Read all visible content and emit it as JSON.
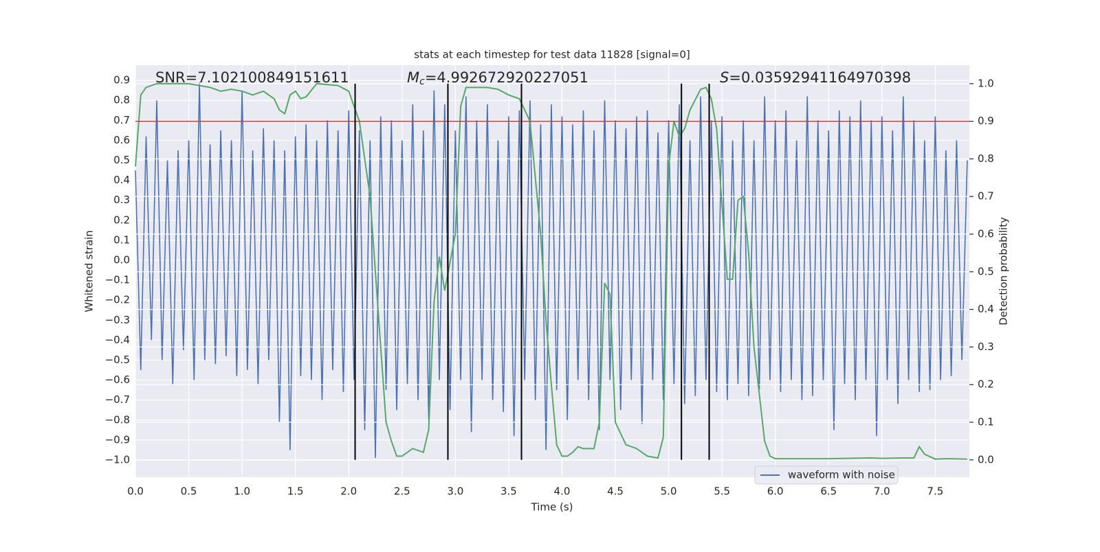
{
  "chart_data": {
    "type": "line",
    "title": "stats at each timestep for test data 11828 [signal=0]",
    "xlabel": "Time (s)",
    "ylabel": "Whitened strain",
    "y2label": "Detection probability",
    "annotations": [
      {
        "text": "SNR=7.102100849151611"
      },
      {
        "symbol": "M",
        "subscript": "c",
        "text": "=4.992672920227051"
      },
      {
        "symbol": "S",
        "text": "=0.03592941164970398"
      }
    ],
    "xlim": [
      0,
      7.82
    ],
    "ylim": [
      -1.086,
      0.976
    ],
    "y2lim": [
      -0.046,
      1.049
    ],
    "xticks": [
      {
        "value": 0,
        "label": "0.0"
      },
      0.5,
      {
        "value": 1,
        "label": "1.0"
      },
      1.5,
      {
        "value": 2,
        "label": "2.0"
      },
      2.5,
      {
        "value": 3,
        "label": "3.0"
      },
      3.5,
      {
        "value": 4,
        "label": "4.0"
      },
      4.5,
      {
        "value": 5,
        "label": "5.0"
      },
      5.5,
      {
        "value": 6,
        "label": "6.0"
      },
      6.5,
      {
        "value": 7,
        "label": "7.0"
      },
      7.5
    ],
    "yticks": [
      {
        "value": -1,
        "label": "−1.0"
      },
      {
        "value": -0.9,
        "label": "−0.9"
      },
      {
        "value": -0.8,
        "label": "−0.8"
      },
      {
        "value": -0.7,
        "label": "−0.7"
      },
      {
        "value": -0.6,
        "label": "−0.6"
      },
      {
        "value": -0.5,
        "label": "−0.5"
      },
      {
        "value": -0.4,
        "label": "−0.4"
      },
      {
        "value": -0.3,
        "label": "−0.3"
      },
      {
        "value": -0.2,
        "label": "−0.2"
      },
      {
        "value": -0.1,
        "label": "−0.1"
      },
      {
        "value": 0,
        "label": "0.0"
      },
      0.1,
      0.2,
      0.3,
      0.4,
      0.5,
      0.6,
      0.7,
      0.8,
      0.9
    ],
    "y2ticks": [
      {
        "value": 0,
        "label": "0.0"
      },
      0.1,
      0.2,
      0.3,
      0.4,
      0.5,
      0.6,
      0.7,
      0.8,
      0.9,
      {
        "value": 1,
        "label": "1.0"
      }
    ],
    "grid": true,
    "legend": "lower right",
    "series": [
      {
        "name": "waveform with noise",
        "color": "#4c72b0",
        "x": [
          0,
          0.05,
          0.1,
          0.15,
          0.2,
          0.25,
          0.3,
          0.35,
          0.4,
          0.45,
          0.5,
          0.55,
          0.6,
          0.65,
          0.7,
          0.75,
          0.8,
          0.85,
          0.9,
          0.95,
          1,
          1.05,
          1.1,
          1.15,
          1.2,
          1.25,
          1.3,
          1.35,
          1.4,
          1.45,
          1.5,
          1.55,
          1.6,
          1.65,
          1.7,
          1.75,
          1.8,
          1.85,
          1.9,
          1.95,
          2,
          2.05,
          2.1,
          2.15,
          2.2,
          2.25,
          2.3,
          2.35,
          2.4,
          2.45,
          2.5,
          2.55,
          2.6,
          2.65,
          2.7,
          2.75,
          2.8,
          2.85,
          2.9,
          2.95,
          3,
          3.05,
          3.1,
          3.15,
          3.2,
          3.25,
          3.3,
          3.35,
          3.4,
          3.45,
          3.5,
          3.55,
          3.6,
          3.65,
          3.7,
          3.75,
          3.8,
          3.85,
          3.9,
          3.95,
          4,
          4.05,
          4.1,
          4.15,
          4.2,
          4.25,
          4.3,
          4.35,
          4.4,
          4.45,
          4.5,
          4.55,
          4.6,
          4.65,
          4.7,
          4.75,
          4.8,
          4.85,
          4.9,
          4.95,
          5,
          5.05,
          5.1,
          5.15,
          5.2,
          5.25,
          5.3,
          5.35,
          5.4,
          5.45,
          5.5,
          5.55,
          5.6,
          5.65,
          5.7,
          5.75,
          5.8,
          5.85,
          5.9,
          5.95,
          6,
          6.05,
          6.1,
          6.15,
          6.2,
          6.25,
          6.3,
          6.35,
          6.4,
          6.45,
          6.5,
          6.55,
          6.6,
          6.65,
          6.7,
          6.75,
          6.8,
          6.85,
          6.9,
          6.95,
          7,
          7.05,
          7.1,
          7.15,
          7.2,
          7.25,
          7.3,
          7.35,
          7.4,
          7.45,
          7.5,
          7.55,
          7.6,
          7.65,
          7.7,
          7.75,
          7.8
        ],
        "values": [
          0.45,
          -0.55,
          0.62,
          -0.4,
          0.8,
          -0.5,
          0.5,
          -0.62,
          0.55,
          -0.45,
          0.6,
          -0.6,
          0.89,
          -0.5,
          0.58,
          -0.52,
          0.65,
          -0.48,
          0.6,
          -0.58,
          0.85,
          -0.55,
          0.55,
          -0.62,
          0.66,
          -0.5,
          0.6,
          -0.81,
          0.55,
          -0.95,
          0.62,
          -0.58,
          0.68,
          -0.6,
          0.6,
          -0.7,
          0.7,
          -0.55,
          0.65,
          -0.66,
          0.75,
          -0.6,
          0.65,
          -0.85,
          0.6,
          -0.99,
          0.72,
          -0.65,
          0.7,
          -0.75,
          0.6,
          -0.62,
          0.78,
          -0.7,
          0.65,
          -0.8,
          0.85,
          -0.6,
          0.78,
          -0.75,
          0.65,
          -0.6,
          0.82,
          -0.86,
          0.7,
          -0.6,
          0.78,
          -0.7,
          0.6,
          -0.76,
          0.72,
          -0.88,
          0.75,
          -0.6,
          0.8,
          -0.7,
          0.68,
          -0.95,
          0.78,
          -0.65,
          0.72,
          -0.8,
          0.68,
          -0.6,
          0.75,
          -0.7,
          0.65,
          -0.85,
          0.8,
          -0.6,
          0.7,
          -0.75,
          0.66,
          -0.6,
          0.72,
          -0.82,
          0.75,
          -0.6,
          0.64,
          -0.7,
          0.7,
          -0.62,
          0.78,
          -0.72,
          0.6,
          -0.68,
          0.82,
          -0.6,
          0.7,
          -0.66,
          0.72,
          -0.7,
          0.6,
          -0.62,
          0.7,
          -0.68,
          0.6,
          -0.65,
          0.82,
          -0.6,
          0.7,
          -0.66,
          0.75,
          -0.6,
          0.6,
          -0.7,
          0.82,
          -0.68,
          0.7,
          -0.6,
          0.65,
          -0.85,
          0.75,
          -0.62,
          0.72,
          -0.7,
          0.8,
          -0.6,
          0.7,
          -0.88,
          0.72,
          -0.6,
          0.65,
          -0.72,
          0.82,
          -0.6,
          0.7,
          -0.66,
          0.6,
          -0.65,
          0.72,
          -0.6,
          0.55,
          -0.58,
          0.6,
          -0.5,
          0.5
        ]
      },
      {
        "color": "#55a868",
        "axis": "y2",
        "x": [
          0,
          0.05,
          0.1,
          0.2,
          0.5,
          0.7,
          0.8,
          0.9,
          1,
          1.1,
          1.2,
          1.3,
          1.35,
          1.4,
          1.45,
          1.5,
          1.55,
          1.6,
          1.7,
          1.9,
          2,
          2.1,
          2.2,
          2.3,
          2.35,
          2.4,
          2.45,
          2.5,
          2.6,
          2.7,
          2.75,
          2.8,
          2.85,
          2.9,
          3,
          3.05,
          3.1,
          3.2,
          3.3,
          3.4,
          3.5,
          3.6,
          3.7,
          3.8,
          3.85,
          3.9,
          3.95,
          4,
          4.05,
          4.1,
          4.15,
          4.2,
          4.3,
          4.35,
          4.4,
          4.45,
          4.5,
          4.6,
          4.7,
          4.8,
          4.9,
          4.95,
          5,
          5.05,
          5.1,
          5.15,
          5.2,
          5.3,
          5.35,
          5.4,
          5.45,
          5.5,
          5.55,
          5.6,
          5.65,
          5.7,
          5.75,
          5.8,
          5.9,
          5.95,
          6,
          6.5,
          6.9,
          7,
          7.2,
          7.3,
          7.35,
          7.4,
          7.5,
          7.6,
          7.8
        ],
        "values": [
          0.78,
          0.97,
          0.99,
          1,
          1,
          0.99,
          0.98,
          0.985,
          0.98,
          0.97,
          0.98,
          0.96,
          0.93,
          0.92,
          0.97,
          0.98,
          0.96,
          0.965,
          1,
          0.995,
          0.98,
          0.9,
          0.7,
          0.3,
          0.1,
          0.05,
          0.01,
          0.01,
          0.03,
          0.02,
          0.08,
          0.42,
          0.54,
          0.45,
          0.6,
          0.94,
          0.99,
          0.99,
          0.99,
          0.985,
          0.97,
          0.96,
          0.9,
          0.6,
          0.37,
          0.2,
          0.04,
          0.01,
          0.01,
          0.02,
          0.035,
          0.03,
          0.03,
          0.1,
          0.47,
          0.44,
          0.1,
          0.04,
          0.03,
          0.01,
          0.005,
          0.06,
          0.78,
          0.9,
          0.86,
          0.88,
          0.93,
          0.985,
          0.99,
          0.96,
          0.88,
          0.68,
          0.48,
          0.48,
          0.69,
          0.7,
          0.55,
          0.3,
          0.05,
          0.01,
          0.003,
          0.003,
          0.005,
          0.004,
          0.005,
          0.005,
          0.035,
          0.015,
          0.002,
          0.003,
          0.002
        ]
      }
    ],
    "threshold": {
      "value": 0.9,
      "axis": "y2",
      "color": "#c03d3e"
    },
    "vlines": {
      "x": [
        2.06,
        2.93,
        3.62,
        5.12,
        5.38
      ],
      "ymin": 0,
      "ymax": 1,
      "axis": "y2",
      "color": "#000000"
    }
  }
}
